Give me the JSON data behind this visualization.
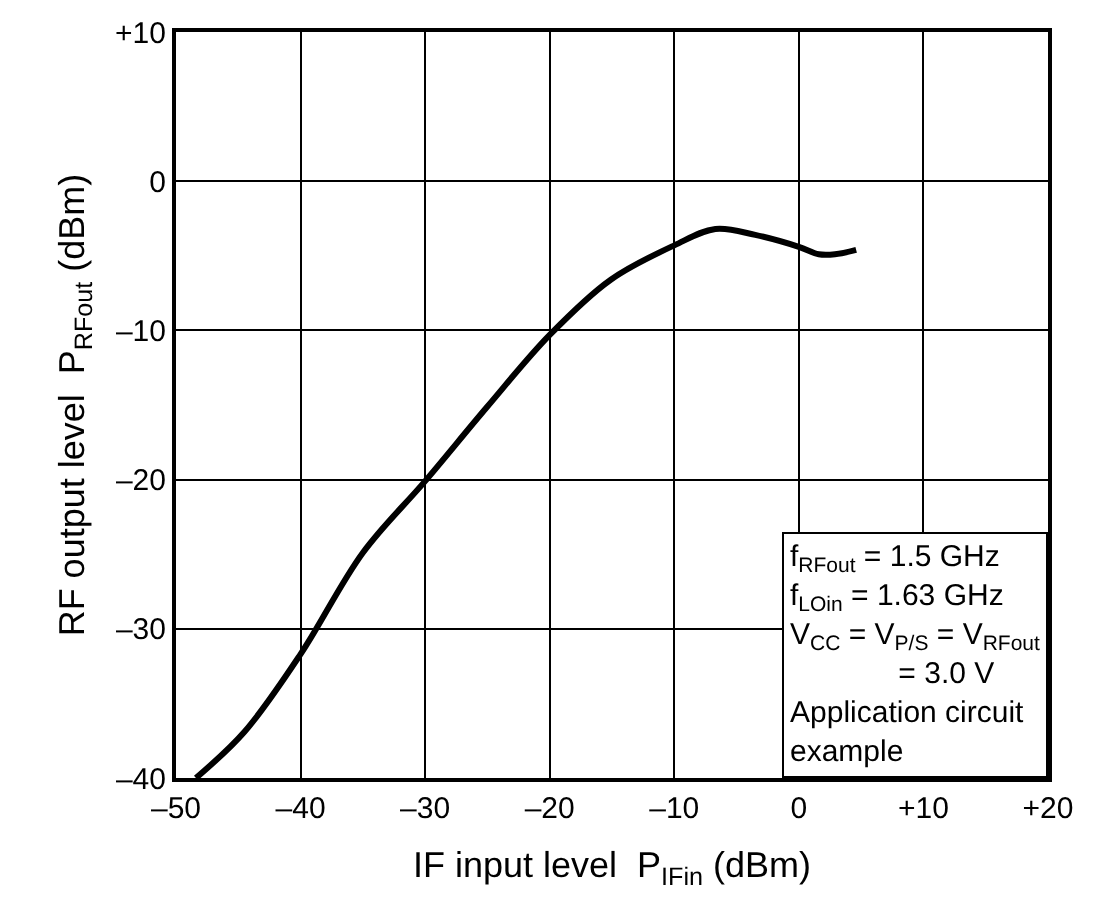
{
  "chart_data": {
    "type": "line",
    "xlabel": "IF input level  P$_{IFin}$ (dBm)",
    "ylabel": "RF output level  P$_{RFout}$ (dBm)",
    "series": [
      {
        "color": "#000000",
        "x": [
          -48.4,
          -44.5,
          -40,
          -35,
          -30,
          -25,
          -20,
          -15.1,
          -10,
          -6.7,
          -3.5,
          0,
          1.6,
          2.9,
          4.6
        ],
        "values": [
          -40,
          -36.9,
          -31.7,
          -24.9,
          -20.1,
          -15.1,
          -10.3,
          -6.6,
          -4.3,
          -3.2,
          -3.6,
          -4.4,
          -4.9,
          -4.9,
          -4.6
        ]
      }
    ],
    "xlim": [
      -50,
      20
    ],
    "ylim": [
      -40,
      10
    ],
    "xticks": [
      {
        "value": -50,
        "label": "–50"
      },
      {
        "value": -40,
        "label": "–40"
      },
      {
        "value": -30,
        "label": "–30"
      },
      {
        "value": -20,
        "label": "–20"
      },
      {
        "value": -10,
        "label": "–10"
      },
      0,
      {
        "value": 10,
        "label": "+10"
      },
      {
        "value": 20,
        "label": "+20"
      }
    ],
    "yticks": [
      {
        "value": -40,
        "label": "–40"
      },
      {
        "value": -30,
        "label": "–30"
      },
      {
        "value": -20,
        "label": "–20"
      },
      {
        "value": -10,
        "label": "–10"
      },
      0,
      {
        "value": 10,
        "label": "+10"
      }
    ],
    "grid": true,
    "marker": "none",
    "line_style": "solid",
    "annotations": [
      "f$_{RFout}$ = 1.5 GHz",
      "f$_{LOin}$ = 1.63 GHz",
      "V$_{CC}$ = V$_{P/S}$ = V$_{RFout}$",
      "             = 3.0 V",
      "Application circuit",
      "example"
    ]
  }
}
